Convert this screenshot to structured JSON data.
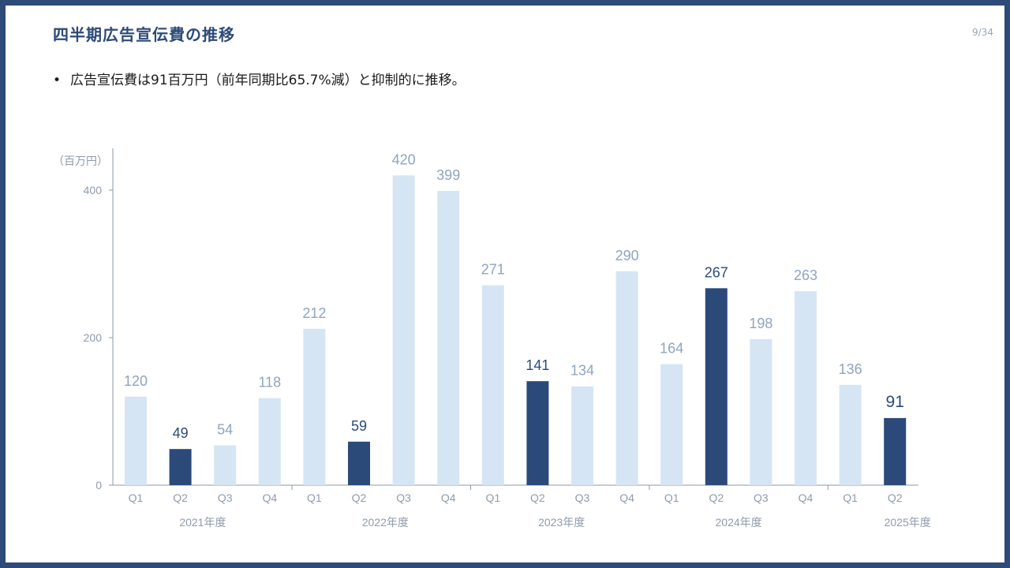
{
  "slide": {
    "title": "四半期広告宣伝費の推移",
    "page_number": "9/34",
    "bullet_marker": "•",
    "bullet_text": "広告宣伝費は91百万円（前年同期比65.7%減）と抑制的に推移。"
  },
  "colors": {
    "highlight": "#2b4a7a",
    "base": "#d6e5f4",
    "value_label_base": "#8fa4bf",
    "axis": "#8c9aa8",
    "tick_label": "#8f9bab",
    "title": "#2d4a78"
  },
  "chart_data": {
    "type": "bar",
    "unit_label": "（百万円）",
    "ylim": [
      0,
      440
    ],
    "yticks": [
      0,
      200,
      400
    ],
    "grid": false,
    "categories": [
      "Q1",
      "Q2",
      "Q3",
      "Q4",
      "Q1",
      "Q2",
      "Q3",
      "Q4",
      "Q1",
      "Q2",
      "Q3",
      "Q4",
      "Q1",
      "Q2",
      "Q3",
      "Q4",
      "Q1",
      "Q2"
    ],
    "values": [
      120,
      49,
      54,
      118,
      212,
      59,
      420,
      399,
      271,
      141,
      134,
      290,
      164,
      267,
      198,
      263,
      136,
      91
    ],
    "highlighted": [
      false,
      true,
      false,
      false,
      false,
      true,
      false,
      false,
      false,
      true,
      false,
      false,
      false,
      true,
      false,
      false,
      false,
      true
    ],
    "fiscal_years": [
      {
        "label": "2021年度",
        "quarters": 4
      },
      {
        "label": "2022年度",
        "quarters": 4
      },
      {
        "label": "2023年度",
        "quarters": 4
      },
      {
        "label": "2024年度",
        "quarters": 4
      },
      {
        "label": "2025年度",
        "quarters": 2
      }
    ]
  }
}
